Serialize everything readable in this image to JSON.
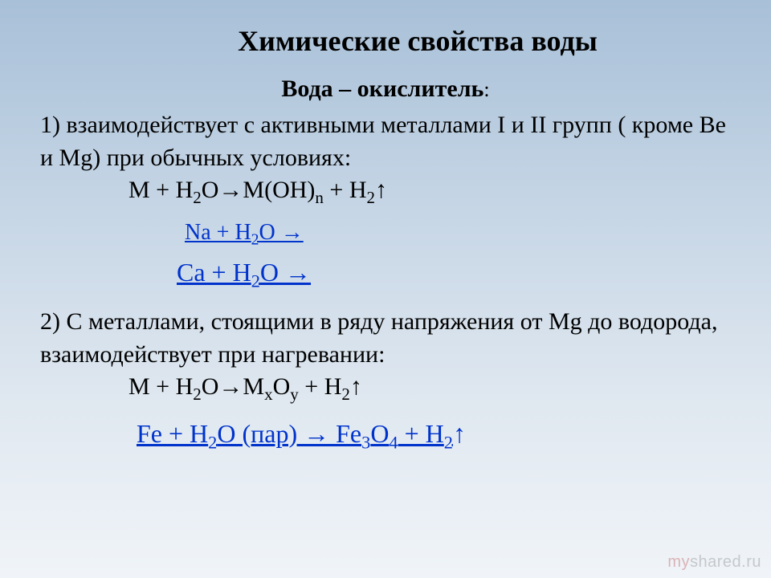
{
  "title": "Химические свойства воды",
  "subtitle": "Вода – окислитель",
  "colon": ":",
  "section1": {
    "num": "1) ",
    "text1": "взаимодействует с активными  металлами  I  и  II групп ( кроме Ве и  Мg) при обычных условиях:",
    "formula_prefix": "М + Н",
    "formula_mid": "О→М(ОН)",
    "formula_suffix": " + Н",
    "arrow": "↑"
  },
  "eq1": {
    "pre": "Na + H",
    "post": "O →"
  },
  "eq2": {
    "pre": "Ca + H",
    "post": "O →"
  },
  "section2": {
    "num": "2) ",
    "text1": "С  металлами,  стоящими в ряду напряжения от Мg до водорода, взаимодействует при нагревании:",
    "formula_prefix": "М + Н",
    "formula_mid": "О→М",
    "formula_x": "x",
    "formula_o": "О",
    "formula_y": "y",
    "formula_suffix": " + Н",
    "arrow": "↑"
  },
  "eq3": {
    "p1": "Fe + H",
    "p2": "O (пар) → Fe",
    "p3": "O",
    "p4": " + H",
    "arrow": "↑"
  },
  "sub2": "2",
  "subn": "n",
  "sub3": "3",
  "sub4": "4",
  "watermark": {
    "my": "my",
    "shared": "shared",
    "ru": ".ru"
  },
  "colors": {
    "link": "#0033cc",
    "text": "#000000",
    "bg_top": "#a8c0d8",
    "bg_bottom": "#f0f4f8"
  }
}
